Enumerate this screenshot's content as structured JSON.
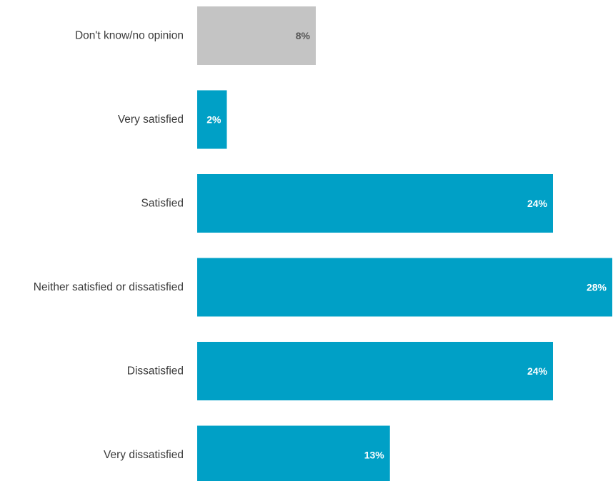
{
  "chart_data": {
    "type": "bar",
    "orientation": "horizontal",
    "categories": [
      "Don't know/no opinion",
      "Very satisfied",
      "Satisfied",
      "Neither satisfied or dissatisfied",
      "Dissatisfied",
      "Very dissatisfied"
    ],
    "values": [
      8,
      2,
      24,
      28,
      24,
      13
    ],
    "value_labels": [
      "8%",
      "2%",
      "24%",
      "28%",
      "24%",
      "13%"
    ],
    "unit": "%",
    "title": "",
    "xlabel": "",
    "ylabel": "",
    "xlim": [
      0,
      28
    ],
    "grid": false,
    "legend": "none",
    "bar_colors": [
      "#c4c4c4",
      "#00a0c6",
      "#00a0c6",
      "#00a0c6",
      "#00a0c6",
      "#00a0c6"
    ],
    "label_colors": [
      "#555555",
      "#ffffff",
      "#ffffff",
      "#ffffff",
      "#ffffff",
      "#ffffff"
    ]
  }
}
